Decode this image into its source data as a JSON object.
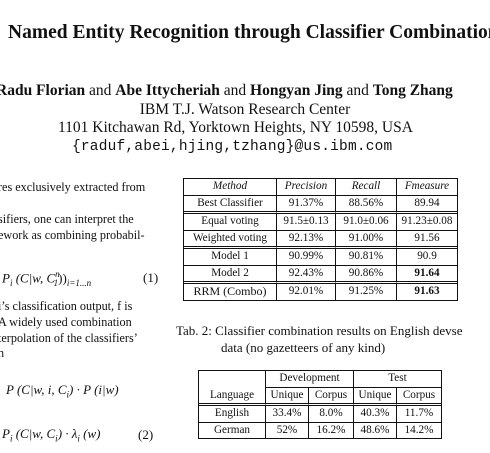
{
  "paper": {
    "title": "Named Entity Recognition through Classifier Combination",
    "authors": [
      "Radu Florian",
      "Abe Ittycheriah",
      "Hongyan Jing",
      "Tong Zhang"
    ],
    "and": "and",
    "institution": "IBM T.J. Watson Research Center",
    "address": "1101 Kitchawan Rd, Yorktown Heights, NY 10598, USA",
    "email": "{raduf,abei,hjing,tzhang}@us.ibm.com"
  },
  "left_text": {
    "line1": "res exclusively extracted from",
    "line2": "sifiers, one can interpret the",
    "line3": "ework as combining probabil-",
    "eq1": "P",
    "eq1_rest": "(C|w, C",
    "eq1_tail": "))",
    "eq1_sub": "i=1...n",
    "eq1_num": "(1)",
    "line4": "i’s classification output, f is",
    "line5": "A widely used combination",
    "line6": "terpolation of the classifiers’",
    "line7": "n",
    "eq_mid": "P (C|w, i, C",
    "eq_mid_tail": ") · P (i|w)",
    "eq2_main": "P",
    "eq2_rest": "(C|w, C",
    "eq2_tail": ") · λ",
    "eq2_w": "(w)",
    "eq2_num": "(2)"
  },
  "table1": {
    "headers": [
      "Method",
      "Precision",
      "Recall",
      "Fmeasure"
    ],
    "rows": [
      [
        "Best Classifier",
        "91.37%",
        "88.56%",
        "89.94"
      ],
      [
        "Equal voting",
        "91.5±0.13",
        "91.0±0.06",
        "91.23±0.08"
      ],
      [
        "Weighted voting",
        "92.13%",
        "91.00%",
        "91.56"
      ],
      [
        "Model 1",
        "90.99%",
        "90.81%",
        "90.9"
      ],
      [
        "Model 2",
        "92.43%",
        "90.86%",
        "91.64"
      ],
      [
        "RRM (Combo)",
        "92.01%",
        "91.25%",
        "91.63"
      ]
    ]
  },
  "caption": {
    "label": "Tab. 2:",
    "line1": "Classifier combination results on English devse",
    "line2": "data (no gazetteers of any kind)"
  },
  "table2": {
    "group_headers": [
      "Development",
      "Test"
    ],
    "sub_headers": [
      "Language",
      "Unique",
      "Corpus",
      "Unique",
      "Corpus"
    ],
    "rows": [
      [
        "English",
        "33.4%",
        "8.0%",
        "40.3%",
        "11.7%"
      ],
      [
        "German",
        "52%",
        "16.2%",
        "48.6%",
        "14.2%"
      ]
    ]
  }
}
